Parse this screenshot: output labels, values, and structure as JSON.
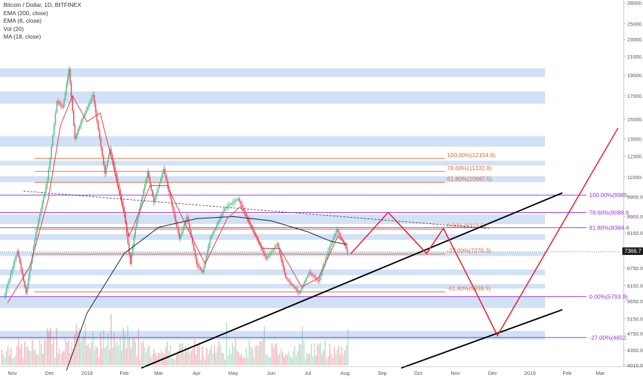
{
  "legend": {
    "symbol": "Bitcoin / Dollar, 1D, BITFINEX",
    "indicators": [
      "EMA (200, close)",
      "EMA (8, close)",
      "Vol (20)",
      "MA (18, close)"
    ]
  },
  "last_price": "7366.7",
  "colors": {
    "up": "#53b987",
    "down": "#eb4d5c",
    "zone": "#c9dcf5",
    "fib_orange": "#e06a3a",
    "fib_purple": "#9b30e0",
    "projection": "#e8202a",
    "ema200": "#1a1a1a",
    "ema8": "#e03a3a",
    "trend": "#000000"
  },
  "chart_data": {
    "type": "line",
    "title": "Bitcoin / Dollar, 1D, BITFINEX",
    "x_tick_labels": [
      "Nov",
      "Dec",
      "2018",
      "Feb",
      "Mar",
      "Apr",
      "May",
      "Jun",
      "Jul",
      "Aug",
      "Sep",
      "Oct",
      "Nov",
      "Dec",
      "2019",
      "Feb",
      "Mar"
    ],
    "y_tick_labels": [
      "28000.0",
      "25000.0",
      "23000.0",
      "21000.0",
      "19000.0",
      "17000.0",
      "15000.0",
      "13500.0",
      "12300.0",
      "11000.0",
      "9900.0",
      "8900.0",
      "8150.0",
      "7350.0",
      "6750.0",
      "6150.0",
      "5650.0",
      "5150.0",
      "4750.0",
      "4350.0",
      "4010.0"
    ],
    "y_scale": "log",
    "ylim": [
      3800,
      29500
    ],
    "price_path": [
      {
        "date": "2017-10-25",
        "price": 5750
      },
      {
        "date": "2017-11-05",
        "price": 7400
      },
      {
        "date": "2017-11-12",
        "price": 5900
      },
      {
        "date": "2017-11-20",
        "price": 8200
      },
      {
        "date": "2017-11-29",
        "price": 10800
      },
      {
        "date": "2017-12-07",
        "price": 16500
      },
      {
        "date": "2017-12-12",
        "price": 16000
      },
      {
        "date": "2017-12-17",
        "price": 19600
      },
      {
        "date": "2017-12-22",
        "price": 13500
      },
      {
        "date": "2017-12-28",
        "price": 15000
      },
      {
        "date": "2018-01-06",
        "price": 17100
      },
      {
        "date": "2018-01-16",
        "price": 11200
      },
      {
        "date": "2018-01-20",
        "price": 12800
      },
      {
        "date": "2018-02-01",
        "price": 9100
      },
      {
        "date": "2018-02-06",
        "price": 6900
      },
      {
        "date": "2018-02-10",
        "price": 8400
      },
      {
        "date": "2018-02-20",
        "price": 11300
      },
      {
        "date": "2018-02-25",
        "price": 9600
      },
      {
        "date": "2018-03-05",
        "price": 11500
      },
      {
        "date": "2018-03-18",
        "price": 7900
      },
      {
        "date": "2018-03-24",
        "price": 8900
      },
      {
        "date": "2018-04-01",
        "price": 6900
      },
      {
        "date": "2018-04-06",
        "price": 6600
      },
      {
        "date": "2018-04-12",
        "price": 7900
      },
      {
        "date": "2018-04-24",
        "price": 9300
      },
      {
        "date": "2018-05-05",
        "price": 9800
      },
      {
        "date": "2018-05-15",
        "price": 8500
      },
      {
        "date": "2018-05-28",
        "price": 7100
      },
      {
        "date": "2018-06-06",
        "price": 7700
      },
      {
        "date": "2018-06-13",
        "price": 6400
      },
      {
        "date": "2018-06-24",
        "price": 5900
      },
      {
        "date": "2018-07-02",
        "price": 6600
      },
      {
        "date": "2018-07-10",
        "price": 6300
      },
      {
        "date": "2018-07-18",
        "price": 7400
      },
      {
        "date": "2018-07-25",
        "price": 8300
      },
      {
        "date": "2018-08-01",
        "price": 7600
      },
      {
        "date": "2018-08-03",
        "price": 7366.7
      }
    ],
    "ema200": [
      {
        "date": "2017-12-15",
        "price": 3900
      },
      {
        "date": "2018-01-01",
        "price": 5300
      },
      {
        "date": "2018-02-01",
        "price": 7300
      },
      {
        "date": "2018-03-01",
        "price": 8400
      },
      {
        "date": "2018-04-01",
        "price": 8800
      },
      {
        "date": "2018-05-01",
        "price": 8900
      },
      {
        "date": "2018-06-01",
        "price": 8700
      },
      {
        "date": "2018-07-01",
        "price": 8200
      },
      {
        "date": "2018-07-20",
        "price": 7800
      },
      {
        "date": "2018-08-03",
        "price": 7650
      }
    ],
    "ema8": [
      {
        "date": "2017-10-28",
        "price": 5600
      },
      {
        "date": "2017-11-15",
        "price": 6800
      },
      {
        "date": "2017-11-30",
        "price": 9800
      },
      {
        "date": "2017-12-10",
        "price": 14500
      },
      {
        "date": "2017-12-20",
        "price": 17000
      },
      {
        "date": "2018-01-01",
        "price": 14800
      },
      {
        "date": "2018-01-12",
        "price": 15500
      },
      {
        "date": "2018-01-22",
        "price": 12000
      },
      {
        "date": "2018-02-05",
        "price": 8000
      },
      {
        "date": "2018-02-22",
        "price": 10500
      },
      {
        "date": "2018-03-08",
        "price": 10500
      },
      {
        "date": "2018-03-25",
        "price": 8300
      },
      {
        "date": "2018-04-08",
        "price": 6900
      },
      {
        "date": "2018-04-26",
        "price": 8800
      },
      {
        "date": "2018-05-07",
        "price": 9400
      },
      {
        "date": "2018-05-25",
        "price": 7500
      },
      {
        "date": "2018-06-08",
        "price": 7500
      },
      {
        "date": "2018-06-26",
        "price": 6100
      },
      {
        "date": "2018-07-10",
        "price": 6400
      },
      {
        "date": "2018-07-26",
        "price": 8000
      },
      {
        "date": "2018-08-03",
        "price": 7650
      }
    ],
    "resistance_zones": [
      [
        18800,
        19700
      ],
      [
        16300,
        17400
      ],
      [
        12950,
        13700
      ],
      [
        11700,
        12000
      ],
      [
        10700,
        11050
      ],
      [
        8550,
        9000
      ],
      [
        7850,
        8100
      ],
      [
        7200,
        7350
      ],
      [
        6500,
        6700
      ],
      [
        6050,
        6200
      ],
      [
        5450,
        5800
      ],
      [
        4600,
        4820
      ]
    ],
    "fib_levels_orange": [
      {
        "label": "100.00%(12154.9)",
        "price": 12154.9
      },
      {
        "label": "78.60%(11332.8)",
        "price": 11332.8
      },
      {
        "label": "61.80%(10687.5)",
        "price": 10687.5
      },
      {
        "label": "0.00%(8313.5)",
        "price": 8313.5
      },
      {
        "label": "-27.00%(7276.3)",
        "price": 7276.3
      },
      {
        "label": "-61.80%(5939.5)",
        "price": 5939.5
      }
    ],
    "fib_levels_purple": [
      {
        "label": "100.00%(9985",
        "price": 9985
      },
      {
        "label": "78.60%(9088.6",
        "price": 9088.6
      },
      {
        "label": "61.80%(8384.4",
        "price": 8384.4
      },
      {
        "label": "0.00%(5793.9)",
        "price": 5793.9
      },
      {
        "label": "-27.00%(4652.",
        "price": 4652
      }
    ],
    "dashed_trend": [
      {
        "date": "2017-11-10",
        "price": 10200
      },
      {
        "date": "2018-11-28",
        "price": 8350
      }
    ],
    "support_trend": [
      {
        "date": "2018-02-15",
        "price": 3950
      },
      {
        "date": "2019-01-28",
        "price": 10100
      }
    ],
    "lower_channel": [
      {
        "date": "2018-09-17",
        "price": 3950
      },
      {
        "date": "2019-01-28",
        "price": 5400
      }
    ],
    "projection_path": [
      {
        "date": "2018-08-06",
        "price": 7300
      },
      {
        "date": "2018-09-06",
        "price": 9100
      },
      {
        "date": "2018-10-08",
        "price": 7300
      },
      {
        "date": "2018-10-22",
        "price": 8350
      },
      {
        "date": "2018-11-18",
        "price": 5900
      },
      {
        "date": "2018-12-05",
        "price": 4700
      },
      {
        "date": "2019-03-16",
        "price": 14300
      }
    ]
  }
}
